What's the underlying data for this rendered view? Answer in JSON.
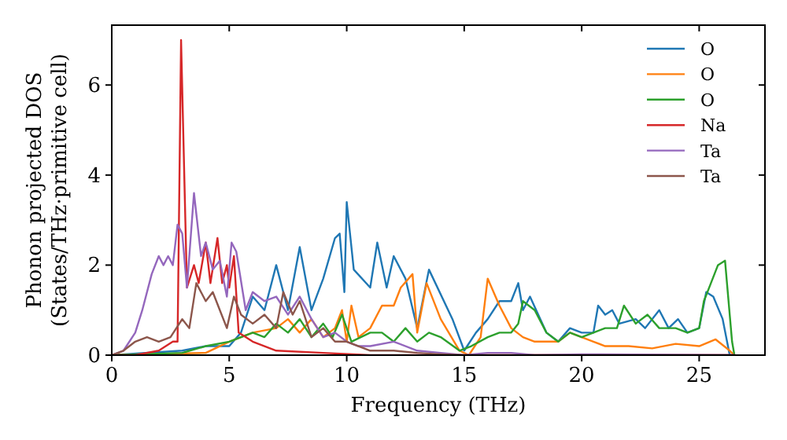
{
  "chart_data": {
    "type": "line",
    "xlabel": "Frequency (THz)",
    "ylabel": "Phonon projected DOS\n(States/THz·primitive cell)",
    "xlim": [
      0,
      27.8
    ],
    "ylim": [
      0,
      7.33
    ],
    "xticks": [
      0,
      5,
      10,
      15,
      20,
      25
    ],
    "yticks": [
      0,
      2,
      4,
      6
    ],
    "grid": false,
    "legend": "top right",
    "marker": "none",
    "line_style": "solid",
    "series": [
      {
        "name": "O",
        "color": "#1f77b4",
        "x": [
          0,
          3,
          4,
          5,
          5.5,
          6,
          6.5,
          7,
          7.5,
          8,
          8.5,
          9,
          9.5,
          9.7,
          9.9,
          10,
          10.3,
          11,
          11.3,
          11.7,
          12,
          12.5,
          13,
          13.5,
          14.5,
          15,
          15.5,
          16,
          16.5,
          17,
          17.3,
          17.5,
          17.8,
          18.5,
          19,
          19.5,
          20,
          20.5,
          20.7,
          21,
          21.3,
          21.6,
          22.3,
          22.7,
          23.3,
          23.7,
          24.1,
          24.5,
          25,
          25.3,
          25.6,
          26,
          26.3,
          26.5
        ],
        "values": [
          0,
          0.1,
          0.2,
          0.2,
          0.5,
          1.3,
          1.0,
          2.0,
          1.0,
          2.4,
          1.0,
          1.7,
          2.6,
          2.7,
          1.4,
          3.4,
          1.9,
          1.5,
          2.5,
          1.5,
          2.2,
          1.7,
          0.6,
          1.9,
          0.8,
          0.1,
          0.5,
          0.8,
          1.2,
          1.2,
          1.6,
          1.0,
          1.3,
          0.5,
          0.3,
          0.6,
          0.5,
          0.5,
          1.1,
          0.9,
          1.0,
          0.7,
          0.8,
          0.6,
          1.0,
          0.6,
          0.8,
          0.5,
          0.6,
          1.4,
          1.3,
          0.8,
          0,
          0
        ]
      },
      {
        "name": "O",
        "color": "#ff7f0e",
        "x": [
          0,
          4,
          5,
          6,
          7,
          7.5,
          8,
          8.5,
          9,
          9.5,
          9.8,
          10,
          10.2,
          10.5,
          11,
          11.5,
          12,
          12.3,
          12.8,
          13,
          13.4,
          14,
          14.8,
          15.2,
          15.7,
          16,
          16.5,
          17,
          17.5,
          18,
          19,
          19.5,
          20.5,
          21,
          22,
          23,
          24,
          25,
          25.7,
          26.3,
          26.5
        ],
        "values": [
          0,
          0.05,
          0.3,
          0.5,
          0.6,
          0.8,
          0.5,
          0.8,
          0.4,
          0.6,
          1.0,
          0.3,
          1.1,
          0.4,
          0.6,
          1.1,
          1.1,
          1.5,
          1.8,
          0.5,
          1.6,
          0.8,
          0.1,
          0,
          0.4,
          1.7,
          1.1,
          0.6,
          0.4,
          0.3,
          0.3,
          0.5,
          0.3,
          0.2,
          0.2,
          0.15,
          0.25,
          0.2,
          0.35,
          0.1,
          0
        ]
      },
      {
        "name": "O",
        "color": "#2ca02c",
        "x": [
          0,
          3,
          4,
          5,
          6,
          6.5,
          7,
          7.5,
          8,
          8.5,
          9,
          9.4,
          9.8,
          10.2,
          11,
          11.5,
          12,
          12.5,
          13,
          13.5,
          14,
          14.8,
          15.3,
          16,
          16.5,
          17,
          17.3,
          17.5,
          18,
          18.5,
          19,
          19.5,
          20,
          20.5,
          21,
          21.5,
          21.8,
          22.3,
          22.8,
          23.3,
          24,
          24.5,
          25,
          25.2,
          25.5,
          25.8,
          26.1,
          26.4,
          26.5
        ],
        "values": [
          0,
          0.05,
          0.2,
          0.3,
          0.5,
          0.4,
          0.7,
          0.5,
          0.8,
          0.4,
          0.7,
          0.4,
          0.9,
          0.3,
          0.5,
          0.5,
          0.3,
          0.6,
          0.3,
          0.5,
          0.4,
          0.1,
          0.2,
          0.4,
          0.5,
          0.5,
          0.7,
          1.2,
          1.0,
          0.5,
          0.3,
          0.5,
          0.4,
          0.5,
          0.6,
          0.6,
          1.1,
          0.7,
          0.9,
          0.6,
          0.6,
          0.5,
          0.6,
          1.2,
          1.6,
          2.0,
          2.1,
          0.3,
          0
        ]
      },
      {
        "name": "Na",
        "color": "#d62728",
        "x": [
          0,
          1,
          2,
          2.6,
          2.8,
          2.95,
          3.2,
          3.5,
          3.7,
          4,
          4.2,
          4.5,
          4.7,
          4.9,
          5,
          5.2,
          5.4,
          6,
          7,
          9,
          11,
          26.5
        ],
        "values": [
          0,
          0,
          0.1,
          0.3,
          0.3,
          7.0,
          1.5,
          2.0,
          1.6,
          2.5,
          1.6,
          2.6,
          1.6,
          2.0,
          1.5,
          2.2,
          0.5,
          0.3,
          0.1,
          0.05,
          0,
          0
        ]
      },
      {
        "name": "Ta",
        "color": "#9467bd",
        "x": [
          0,
          0.5,
          1,
          1.3,
          1.7,
          2,
          2.2,
          2.4,
          2.6,
          2.8,
          3,
          3.2,
          3.5,
          3.8,
          4,
          4.3,
          4.6,
          4.9,
          5.1,
          5.3,
          5.7,
          6,
          6.5,
          7,
          7.5,
          8,
          8.5,
          9,
          9.5,
          10,
          10.5,
          11,
          12,
          13,
          14,
          15,
          16,
          17,
          18,
          20,
          26.5
        ],
        "values": [
          0,
          0.1,
          0.5,
          1.0,
          1.8,
          2.2,
          2.0,
          2.2,
          2.0,
          2.9,
          2.7,
          1.5,
          3.6,
          2.2,
          2.5,
          1.9,
          2.1,
          1.3,
          2.5,
          2.3,
          1.0,
          1.4,
          1.2,
          1.3,
          0.9,
          1.3,
          0.8,
          0.4,
          0.5,
          0.3,
          0.2,
          0.2,
          0.3,
          0.1,
          0.05,
          0,
          0.05,
          0.05,
          0,
          0.02,
          0
        ]
      },
      {
        "name": "Ta",
        "color": "#8c564b",
        "x": [
          0,
          0.5,
          1,
          1.5,
          2,
          2.5,
          3,
          3.3,
          3.6,
          4,
          4.3,
          4.6,
          4.9,
          5.2,
          5.5,
          6,
          6.5,
          7,
          7.3,
          7.7,
          8,
          8.5,
          9,
          9.5,
          10,
          11,
          12,
          13,
          14,
          15,
          26.5
        ],
        "values": [
          0,
          0.1,
          0.3,
          0.4,
          0.3,
          0.4,
          0.8,
          0.6,
          1.6,
          1.2,
          1.4,
          1.0,
          0.6,
          1.3,
          0.9,
          0.7,
          0.9,
          0.6,
          1.4,
          0.9,
          1.2,
          0.4,
          0.6,
          0.3,
          0.3,
          0.1,
          0.1,
          0.05,
          0.02,
          0,
          0
        ]
      }
    ]
  }
}
